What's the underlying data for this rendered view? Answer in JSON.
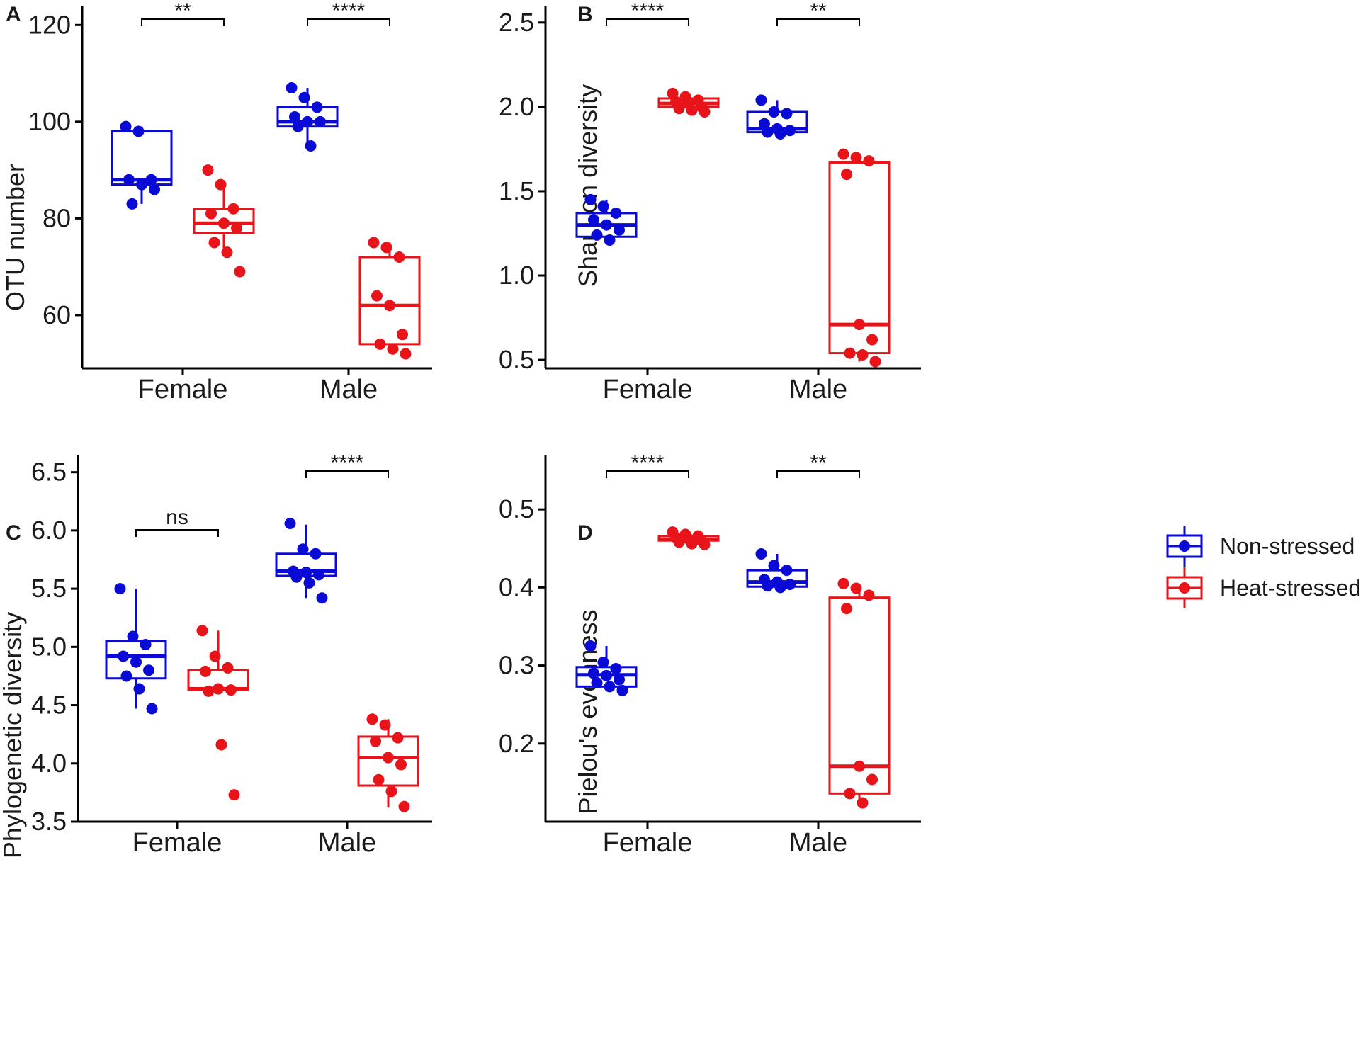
{
  "legend": [
    {
      "name": "Non-stressed",
      "color": "#0a0ad6"
    },
    {
      "name": "Heat-stressed",
      "color": "#e8141a"
    }
  ],
  "chart_data": [
    {
      "type": "box",
      "panel": "A",
      "ylabel": "OTU number",
      "ylim": [
        49,
        124
      ],
      "yticks": [
        60,
        80,
        100,
        120
      ],
      "categories": [
        "Female",
        "Male"
      ],
      "series": [
        {
          "name": "Non-stressed",
          "boxes": [
            {
              "q1": 87,
              "median": 88,
              "q3": 98,
              "whisker_low": 83,
              "whisker_high": 99,
              "points": [
                99,
                98,
                88,
                88,
                87,
                86,
                83
              ]
            },
            {
              "q1": 99,
              "median": 100,
              "q3": 103,
              "whisker_low": 95,
              "whisker_high": 107,
              "points": [
                107,
                105,
                103,
                101,
                100,
                100,
                99,
                95
              ]
            }
          ]
        },
        {
          "name": "Heat-stressed",
          "boxes": [
            {
              "q1": 77,
              "median": 79,
              "q3": 82,
              "whisker_low": 73,
              "whisker_high": 87,
              "points": [
                90,
                87,
                82,
                81,
                79,
                78,
                75,
                73,
                69
              ]
            },
            {
              "q1": 54,
              "median": 62,
              "q3": 72,
              "whisker_low": 52,
              "whisker_high": 75,
              "points": [
                75,
                74,
                72,
                64,
                62,
                56,
                54,
                53,
                52
              ]
            }
          ]
        }
      ],
      "significance": [
        "**",
        "****"
      ]
    },
    {
      "type": "box",
      "panel": "B",
      "ylabel": "Shannon diversity",
      "ylim": [
        0.45,
        2.6
      ],
      "yticks": [
        0.5,
        1.0,
        1.5,
        2.0,
        2.5
      ],
      "categories": [
        "Female",
        "Male"
      ],
      "series": [
        {
          "name": "Non-stressed",
          "boxes": [
            {
              "q1": 1.23,
              "median": 1.3,
              "q3": 1.37,
              "whisker_low": 1.2,
              "whisker_high": 1.45,
              "points": [
                1.45,
                1.41,
                1.37,
                1.33,
                1.3,
                1.27,
                1.24,
                1.21
              ]
            },
            {
              "q1": 1.85,
              "median": 1.87,
              "q3": 1.97,
              "whisker_low": 1.84,
              "whisker_high": 2.04,
              "points": [
                2.04,
                1.97,
                1.96,
                1.9,
                1.87,
                1.86,
                1.85,
                1.84
              ]
            }
          ]
        },
        {
          "name": "Heat-stressed",
          "boxes": [
            {
              "q1": 2.0,
              "median": 2.02,
              "q3": 2.05,
              "whisker_low": 1.97,
              "whisker_high": 2.08,
              "points": [
                2.08,
                2.06,
                2.04,
                2.03,
                2.02,
                2.0,
                1.99,
                1.98,
                1.97
              ]
            },
            {
              "q1": 0.54,
              "median": 0.71,
              "q3": 1.67,
              "whisker_low": 0.49,
              "whisker_high": 1.72,
              "points": [
                1.72,
                1.7,
                1.68,
                1.6,
                0.71,
                0.62,
                0.54,
                0.53,
                0.49
              ]
            }
          ]
        }
      ],
      "significance": [
        "****",
        "**"
      ]
    },
    {
      "type": "box",
      "panel": "C",
      "ylabel": "Phylogenetic diversity",
      "ylim": [
        3.5,
        6.65
      ],
      "yticks": [
        3.5,
        4.0,
        4.5,
        5.0,
        5.5,
        6.0,
        6.5
      ],
      "categories": [
        "Female",
        "Male"
      ],
      "series": [
        {
          "name": "Non-stressed",
          "boxes": [
            {
              "q1": 4.73,
              "median": 4.92,
              "q3": 5.05,
              "whisker_low": 4.47,
              "whisker_high": 5.5,
              "points": [
                5.5,
                5.09,
                5.02,
                4.92,
                4.87,
                4.8,
                4.75,
                4.64,
                4.47
              ]
            },
            {
              "q1": 5.61,
              "median": 5.65,
              "q3": 5.8,
              "whisker_low": 5.42,
              "whisker_high": 6.05,
              "points": [
                6.06,
                5.84,
                5.8,
                5.65,
                5.64,
                5.62,
                5.6,
                5.55,
                5.42
              ]
            }
          ]
        },
        {
          "name": "Heat-stressed",
          "boxes": [
            {
              "q1": 4.63,
              "median": 4.64,
              "q3": 4.8,
              "whisker_low": 4.63,
              "whisker_high": 5.14,
              "points": [
                5.14,
                4.92,
                4.82,
                4.79,
                4.64,
                4.63,
                4.62,
                4.16,
                3.73
              ]
            },
            {
              "q1": 3.81,
              "median": 4.05,
              "q3": 4.23,
              "whisker_low": 3.62,
              "whisker_high": 4.38,
              "points": [
                4.38,
                4.33,
                4.22,
                4.19,
                4.05,
                3.99,
                3.86,
                3.76,
                3.63
              ]
            }
          ]
        }
      ],
      "significance": [
        "ns",
        "****"
      ]
    },
    {
      "type": "box",
      "panel": "D",
      "ylabel": "Pielou's evenness",
      "ylim": [
        0.1,
        0.57
      ],
      "yticks": [
        0.2,
        0.3,
        0.4,
        0.5
      ],
      "categories": [
        "Female",
        "Male"
      ],
      "series": [
        {
          "name": "Non-stressed",
          "boxes": [
            {
              "q1": 0.273,
              "median": 0.288,
              "q3": 0.298,
              "whisker_low": 0.268,
              "whisker_high": 0.325,
              "points": [
                0.325,
                0.304,
                0.296,
                0.29,
                0.287,
                0.282,
                0.278,
                0.273,
                0.268
              ]
            },
            {
              "q1": 0.401,
              "median": 0.407,
              "q3": 0.422,
              "whisker_low": 0.4,
              "whisker_high": 0.443,
              "points": [
                0.443,
                0.428,
                0.422,
                0.41,
                0.407,
                0.404,
                0.402,
                0.4
              ]
            }
          ]
        },
        {
          "name": "Heat-stressed",
          "boxes": [
            {
              "q1": 0.46,
              "median": 0.462,
              "q3": 0.466,
              "whisker_low": 0.455,
              "whisker_high": 0.471,
              "points": [
                0.471,
                0.468,
                0.466,
                0.464,
                0.462,
                0.46,
                0.458,
                0.456,
                0.455
              ]
            },
            {
              "q1": 0.136,
              "median": 0.171,
              "q3": 0.387,
              "whisker_low": 0.124,
              "whisker_high": 0.405,
              "points": [
                0.405,
                0.399,
                0.39,
                0.373,
                0.171,
                0.154,
                0.136,
                0.124
              ]
            }
          ]
        }
      ],
      "significance": [
        "****",
        "**"
      ]
    }
  ]
}
